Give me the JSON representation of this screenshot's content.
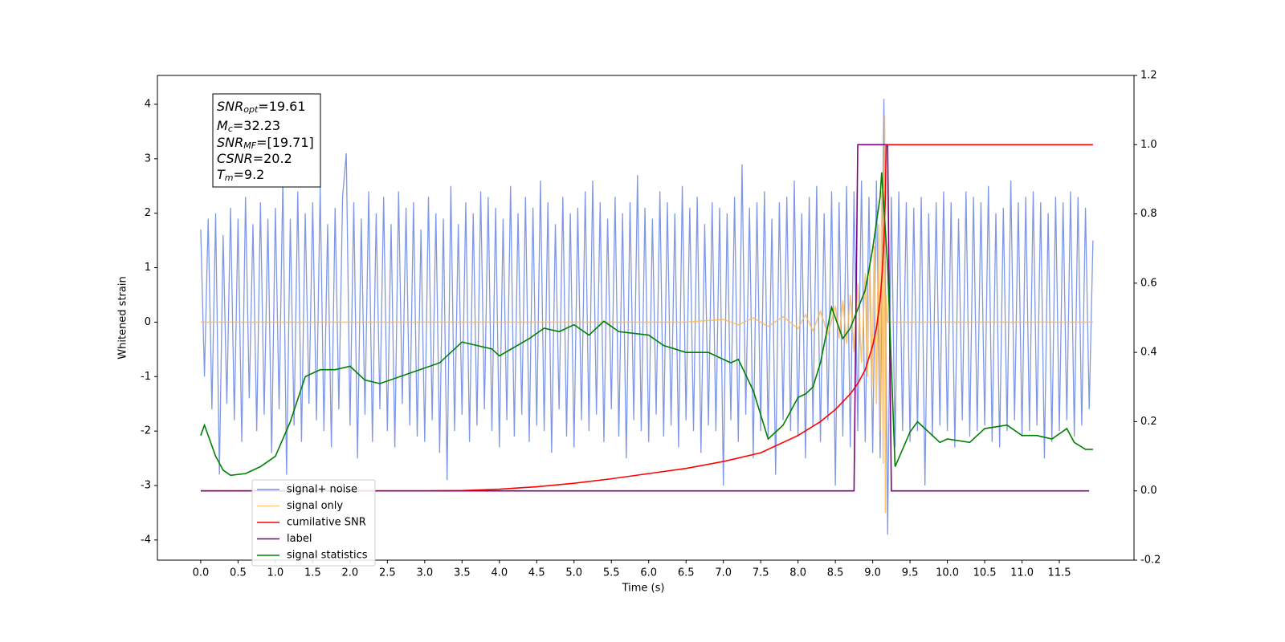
{
  "chart_data": {
    "type": "line",
    "xlabel": "Time (s)",
    "ylabel": "Whitened strain",
    "xlim": [
      -0.58,
      12.5
    ],
    "ylim": [
      -4.37,
      4.53
    ],
    "y2lim": [
      -0.2,
      1.2
    ],
    "xticks": [
      {
        "value": 0,
        "label": "0.0"
      },
      0.5,
      {
        "value": 1,
        "label": "1.0"
      },
      1.5,
      {
        "value": 2,
        "label": "2.0"
      },
      2.5,
      {
        "value": 3,
        "label": "3.0"
      },
      3.5,
      {
        "value": 4,
        "label": "4.0"
      },
      4.5,
      {
        "value": 5,
        "label": "5.0"
      },
      5.5,
      {
        "value": 6,
        "label": "6.0"
      },
      6.5,
      {
        "value": 7,
        "label": "7.0"
      },
      7.5,
      {
        "value": 8,
        "label": "8.0"
      },
      8.5,
      {
        "value": 9,
        "label": "9.0"
      },
      9.5,
      {
        "value": 10,
        "label": "10.0"
      },
      10.5,
      {
        "value": 11,
        "label": "11.0"
      },
      11.5
    ],
    "yticks": [
      -4,
      -3,
      -2,
      -1,
      0,
      1,
      2,
      3,
      4
    ],
    "y2ticks": [
      -0.2,
      {
        "value": 0,
        "label": "0.0"
      },
      0.2,
      0.4,
      0.6,
      0.8,
      {
        "value": 1,
        "label": "1.0"
      },
      1.2
    ],
    "legend": "lower left",
    "annotations": [
      {
        "name": "SNR",
        "sub": "opt",
        "text": "=19.61"
      },
      {
        "name": "M",
        "sub": "c",
        "text": "=32.23"
      },
      {
        "name": "SNR",
        "sub": "MF",
        "text": "=[19.71]"
      },
      {
        "name": "CSNR",
        "text": "=20.2"
      },
      {
        "name": "T",
        "sub": "m",
        "text": "=9.2"
      }
    ],
    "series": [
      {
        "name": "signal+ noise",
        "color": "#7891e6",
        "x": [
          0,
          0.05,
          0.1,
          0.15,
          0.2,
          0.25,
          0.3,
          0.35,
          0.4,
          0.45,
          0.5,
          0.55,
          0.6,
          0.65,
          0.7,
          0.75,
          0.8,
          0.85,
          0.9,
          0.95,
          1,
          1.05,
          1.1,
          1.15,
          1.2,
          1.25,
          1.3,
          1.35,
          1.4,
          1.45,
          1.5,
          1.55,
          1.6,
          1.65,
          1.7,
          1.75,
          1.8,
          1.85,
          1.9,
          1.95,
          2,
          2.05,
          2.1,
          2.15,
          2.2,
          2.25,
          2.3,
          2.35,
          2.4,
          2.45,
          2.5,
          2.55,
          2.6,
          2.65,
          2.7,
          2.75,
          2.8,
          2.85,
          2.9,
          2.95,
          3,
          3.05,
          3.1,
          3.15,
          3.2,
          3.25,
          3.3,
          3.35,
          3.4,
          3.45,
          3.5,
          3.55,
          3.6,
          3.65,
          3.7,
          3.75,
          3.8,
          3.85,
          3.9,
          3.95,
          4,
          4.05,
          4.1,
          4.15,
          4.2,
          4.25,
          4.3,
          4.35,
          4.4,
          4.45,
          4.5,
          4.55,
          4.6,
          4.65,
          4.7,
          4.75,
          4.8,
          4.85,
          4.9,
          4.95,
          5,
          5.05,
          5.1,
          5.15,
          5.2,
          5.25,
          5.3,
          5.35,
          5.4,
          5.45,
          5.5,
          5.55,
          5.6,
          5.65,
          5.7,
          5.75,
          5.8,
          5.85,
          5.9,
          5.95,
          6,
          6.05,
          6.1,
          6.15,
          6.2,
          6.25,
          6.3,
          6.35,
          6.4,
          6.45,
          6.5,
          6.55,
          6.6,
          6.65,
          6.7,
          6.75,
          6.8,
          6.85,
          6.9,
          6.95,
          7,
          7.05,
          7.1,
          7.15,
          7.2,
          7.25,
          7.3,
          7.35,
          7.4,
          7.45,
          7.5,
          7.55,
          7.6,
          7.65,
          7.7,
          7.75,
          7.8,
          7.85,
          7.9,
          7.95,
          8,
          8.05,
          8.1,
          8.15,
          8.2,
          8.25,
          8.3,
          8.35,
          8.4,
          8.45,
          8.5,
          8.55,
          8.6,
          8.65,
          8.7,
          8.75,
          8.8,
          8.85,
          8.9,
          8.95,
          9,
          9.05,
          9.1,
          9.15,
          9.2,
          9.25,
          9.3,
          9.35,
          9.4,
          9.45,
          9.5,
          9.55,
          9.6,
          9.65,
          9.7,
          9.75,
          9.8,
          9.85,
          9.9,
          9.95,
          10,
          10.05,
          10.1,
          10.15,
          10.2,
          10.25,
          10.3,
          10.35,
          10.4,
          10.45,
          10.5,
          10.55,
          10.6,
          10.65,
          10.7,
          10.75,
          10.8,
          10.85,
          10.9,
          10.95,
          11,
          11.05,
          11.1,
          11.15,
          11.2,
          11.25,
          11.3,
          11.35,
          11.4,
          11.45,
          11.5,
          11.55,
          11.6,
          11.65,
          11.7,
          11.75,
          11.8,
          11.85,
          11.9,
          11.95
        ],
        "values": [
          1.7,
          -1.0,
          1.9,
          -1.6,
          2.0,
          -2.8,
          1.6,
          -1.5,
          2.1,
          -1.8,
          1.9,
          -2.2,
          2.3,
          -1.4,
          1.8,
          -2.0,
          2.2,
          -1.7,
          1.9,
          -2.4,
          2.1,
          -1.6,
          2.6,
          -2.8,
          1.9,
          -1.9,
          2.4,
          -2.2,
          2.0,
          -1.5,
          2.2,
          -1.8,
          2.5,
          -2.0,
          1.8,
          -2.3,
          2.1,
          -1.6,
          2.3,
          3.1,
          -1.9,
          2.2,
          -2.5,
          1.9,
          -1.7,
          2.4,
          -2.2,
          2.0,
          -1.6,
          2.3,
          -2.0,
          1.8,
          -2.3,
          2.4,
          -1.5,
          2.1,
          -1.9,
          2.2,
          -2.1,
          1.7,
          -2.2,
          2.3,
          -1.8,
          2.0,
          -2.4,
          1.9,
          -2.9,
          2.5,
          -2.0,
          1.8,
          -1.7,
          2.2,
          -2.2,
          2.0,
          -1.9,
          2.4,
          -1.6,
          2.3,
          -2.0,
          2.1,
          -2.3,
          1.9,
          -1.8,
          2.5,
          -2.1,
          2.0,
          -1.7,
          2.3,
          -2.2,
          2.1,
          -1.9,
          2.6,
          -2.0,
          2.2,
          -2.4,
          1.8,
          -1.6,
          2.3,
          -2.1,
          2.0,
          -2.3,
          2.1,
          -1.8,
          2.4,
          -2.0,
          2.6,
          -1.7,
          2.2,
          -2.2,
          1.9,
          -1.6,
          2.3,
          -2.1,
          2.0,
          -2.5,
          2.2,
          -1.8,
          2.7,
          -2.0,
          2.1,
          -2.2,
          1.9,
          -1.7,
          2.4,
          -2.1,
          2.2,
          -1.9,
          2.0,
          -2.3,
          2.5,
          -1.8,
          2.1,
          -2.0,
          2.3,
          -2.4,
          1.8,
          -1.9,
          2.2,
          -2.0,
          2.1,
          -3.0,
          2.0,
          -1.8,
          2.3,
          -2.2,
          2.9,
          -1.7,
          2.1,
          -2.5,
          2.2,
          -2.0,
          2.4,
          -2.1,
          1.9,
          -2.8,
          2.2,
          -1.8,
          2.3,
          -2.0,
          2.6,
          -2.1,
          2.0,
          -2.5,
          2.3,
          -1.9,
          2.5,
          -2.2,
          2.0,
          -1.8,
          2.4,
          -3.0,
          2.2,
          -2.1,
          2.5,
          -2.3,
          2.4,
          -2.0,
          2.6,
          -2.2,
          2.3,
          -2.4,
          2.6,
          -2.5,
          4.1,
          -3.9,
          2.3,
          -2.3,
          2.4,
          -2.0,
          2.2,
          -2.2,
          2.1,
          -2.0,
          2.3,
          -3.0,
          2.0,
          -2.1,
          2.2,
          -1.9,
          2.4,
          -2.0,
          2.2,
          -2.3,
          1.9,
          -1.8,
          2.4,
          -2.1,
          2.3,
          -2.0,
          2.2,
          -1.9,
          2.5,
          -2.2,
          2.0,
          -2.3,
          2.1,
          -2.0,
          2.6,
          -1.8,
          2.2,
          -2.1,
          2.3,
          -2.0,
          2.4,
          -1.9,
          2.2,
          -2.5,
          2.0,
          -2.2,
          2.3,
          -2.0,
          2.2,
          -1.8,
          2.4,
          -2.1,
          2.3,
          -1.9,
          2.1,
          -1.6,
          1.5
        ]
      },
      {
        "name": "signal only",
        "color": "#ffb84d",
        "x": [
          0,
          6.5,
          7.0,
          7.2,
          7.4,
          7.6,
          7.8,
          8.0,
          8.1,
          8.2,
          8.3,
          8.4,
          8.5,
          8.55,
          8.6,
          8.65,
          8.7,
          8.75,
          8.8,
          8.85,
          8.9,
          8.93,
          8.96,
          8.99,
          9.02,
          9.05,
          9.08,
          9.1,
          9.12,
          9.14,
          9.16,
          9.17,
          9.18,
          9.2,
          9.25,
          11.95
        ],
        "values": [
          0,
          0,
          0.05,
          -0.05,
          0.08,
          -0.08,
          0.1,
          -0.12,
          0.14,
          -0.16,
          0.2,
          -0.22,
          0.3,
          -0.3,
          0.4,
          -0.4,
          0.5,
          -0.55,
          0.7,
          -0.75,
          0.9,
          -1.0,
          1.1,
          -1.2,
          1.4,
          -1.5,
          1.8,
          -2.0,
          2.4,
          -2.6,
          3.8,
          -3.5,
          0.5,
          0,
          0,
          0
        ]
      },
      {
        "name": "cumilative SNR",
        "color": "#ff0000",
        "axis": "y2",
        "x": [
          0,
          3.0,
          3.5,
          4.0,
          4.5,
          5.0,
          5.5,
          6.0,
          6.5,
          7.0,
          7.5,
          8.0,
          8.3,
          8.5,
          8.7,
          8.8,
          8.9,
          9.0,
          9.05,
          9.1,
          9.13,
          9.15,
          9.17,
          9.18,
          11.95
        ],
        "values": [
          0,
          0,
          0.001,
          0.005,
          0.012,
          0.022,
          0.035,
          0.05,
          0.065,
          0.085,
          0.11,
          0.16,
          0.2,
          0.235,
          0.28,
          0.31,
          0.35,
          0.42,
          0.47,
          0.55,
          0.64,
          0.72,
          0.85,
          1.0,
          1.0
        ]
      },
      {
        "name": "label",
        "color": "#800080",
        "axis": "y2",
        "x": [
          0,
          8.75,
          8.8,
          9.2,
          9.25,
          11.9
        ],
        "values": [
          0,
          0,
          1,
          1,
          0,
          0
        ]
      },
      {
        "name": "signal statistics",
        "color": "#008000",
        "axis": "y2",
        "x": [
          0,
          0.05,
          0.2,
          0.3,
          0.4,
          0.6,
          0.8,
          1.0,
          1.2,
          1.4,
          1.6,
          1.8,
          2.0,
          2.2,
          2.4,
          2.8,
          3.2,
          3.5,
          3.9,
          4.0,
          4.4,
          4.6,
          4.8,
          5.0,
          5.2,
          5.4,
          5.6,
          6.0,
          6.2,
          6.5,
          6.8,
          7.1,
          7.2,
          7.4,
          7.6,
          7.8,
          8.0,
          8.1,
          8.2,
          8.3,
          8.45,
          8.6,
          8.7,
          8.9,
          9.0,
          9.1,
          9.12,
          9.2,
          9.3,
          9.5,
          9.6,
          9.9,
          10.0,
          10.3,
          10.5,
          10.8,
          11.0,
          11.2,
          11.4,
          11.6,
          11.7,
          11.85,
          11.95
        ],
        "values": [
          0.16,
          0.19,
          0.1,
          0.06,
          0.045,
          0.05,
          0.07,
          0.1,
          0.2,
          0.33,
          0.35,
          0.35,
          0.36,
          0.32,
          0.31,
          0.34,
          0.37,
          0.43,
          0.41,
          0.39,
          0.44,
          0.47,
          0.46,
          0.48,
          0.45,
          0.49,
          0.46,
          0.45,
          0.42,
          0.4,
          0.4,
          0.37,
          0.38,
          0.29,
          0.15,
          0.19,
          0.27,
          0.28,
          0.3,
          0.37,
          0.53,
          0.44,
          0.47,
          0.58,
          0.7,
          0.85,
          0.92,
          0.65,
          0.07,
          0.17,
          0.2,
          0.14,
          0.15,
          0.14,
          0.18,
          0.19,
          0.16,
          0.16,
          0.15,
          0.18,
          0.14,
          0.12,
          0.12
        ]
      }
    ]
  }
}
